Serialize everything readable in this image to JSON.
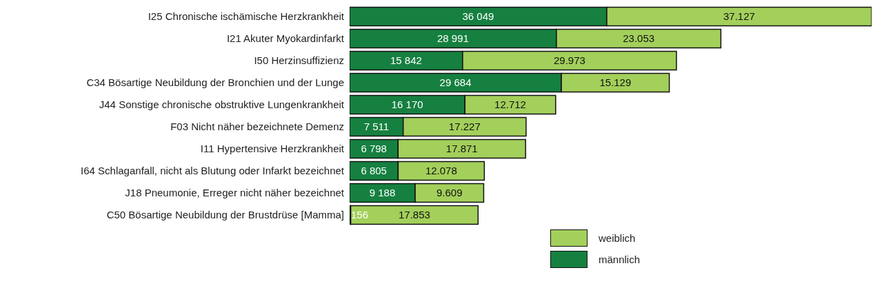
{
  "chart_data": {
    "type": "bar",
    "orientation": "horizontal",
    "stacked": true,
    "categories": [
      "I25 Chronische ischämische Herzkrankheit",
      "I21 Akuter Myokardinfarkt",
      "I50 Herzinsuffizienz",
      "C34 Bösartige Neubildung der Bronchien und der Lunge",
      "J44 Sonstige chronische obstruktive Lungenkrankheit",
      "F03 Nicht näher bezeichnete Demenz",
      "I11 Hypertensive Herzkrankheit",
      "I64 Schlaganfall, nicht als Blutung oder Infarkt bezeichnet",
      "J18 Pneumonie, Erreger nicht näher bezeichnet",
      "C50 Bösartige Neubildung der Brustdrüse [Mamma]"
    ],
    "series": [
      {
        "name": "männlich",
        "color": "#168040",
        "values": [
          36049,
          28991,
          15842,
          29684,
          16170,
          7511,
          6798,
          6805,
          9188,
          156
        ],
        "value_labels": [
          "36 049",
          "28 991",
          "15 842",
          "29 684",
          "16 170",
          "7 511",
          "6 798",
          "6 805",
          "9 188",
          "156"
        ]
      },
      {
        "name": "weiblich",
        "color": "#a3cf5b",
        "values": [
          37127,
          23053,
          29973,
          15129,
          12712,
          17227,
          17871,
          12078,
          9609,
          17853
        ],
        "value_labels": [
          "37.127",
          "23.053",
          "29.973",
          "15.129",
          "12.712",
          "17.227",
          "17.871",
          "12.078",
          "9.609",
          "17.853"
        ]
      }
    ],
    "legend": "bottom right"
  }
}
